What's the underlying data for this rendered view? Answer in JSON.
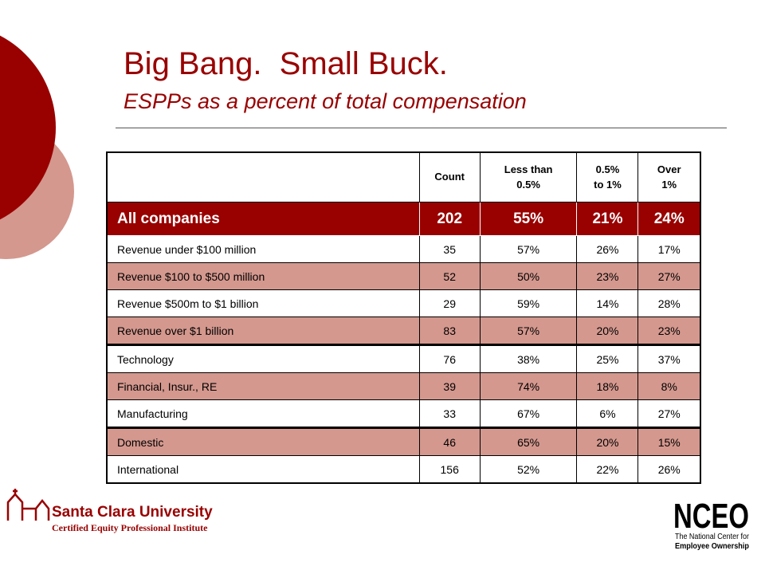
{
  "header": {
    "title": "Big Bang.  Small Buck.",
    "subtitle": "ESPPs as a percent of total compensation"
  },
  "table": {
    "columns": [
      [
        "Count"
      ],
      [
        "Less than",
        "0.5%"
      ],
      [
        "0.5%",
        "to 1%"
      ],
      [
        "Over",
        "1%"
      ]
    ],
    "rows": [
      [
        "All companies",
        "202",
        "55%",
        "21%",
        "24%"
      ],
      [
        "Revenue under $100 million",
        "35",
        "57%",
        "26%",
        "17%"
      ],
      [
        "Revenue $100 to $500 million",
        "52",
        "50%",
        "23%",
        "27%"
      ],
      [
        "Revenue $500m to $1 billion",
        "29",
        "59%",
        "14%",
        "28%"
      ],
      [
        "Revenue over $1 billion",
        "83",
        "57%",
        "20%",
        "23%"
      ],
      [
        "Technology",
        "76",
        "38%",
        "25%",
        "37%"
      ],
      [
        "Financial, Insur., RE",
        "39",
        "74%",
        "18%",
        "8%"
      ],
      [
        "Manufacturing",
        "33",
        "67%",
        "6%",
        "27%"
      ],
      [
        "Domestic",
        "46",
        "65%",
        "20%",
        "15%"
      ],
      [
        "International",
        "156",
        "52%",
        "22%",
        "26%"
      ]
    ]
  },
  "footer": {
    "left_logo": {
      "name": "Santa Clara University",
      "tagline": "Certified Equity Professional Institute"
    },
    "right_logo": {
      "name": "NCEO",
      "line1": "The National Center for",
      "line2": "Employee Ownership"
    }
  }
}
